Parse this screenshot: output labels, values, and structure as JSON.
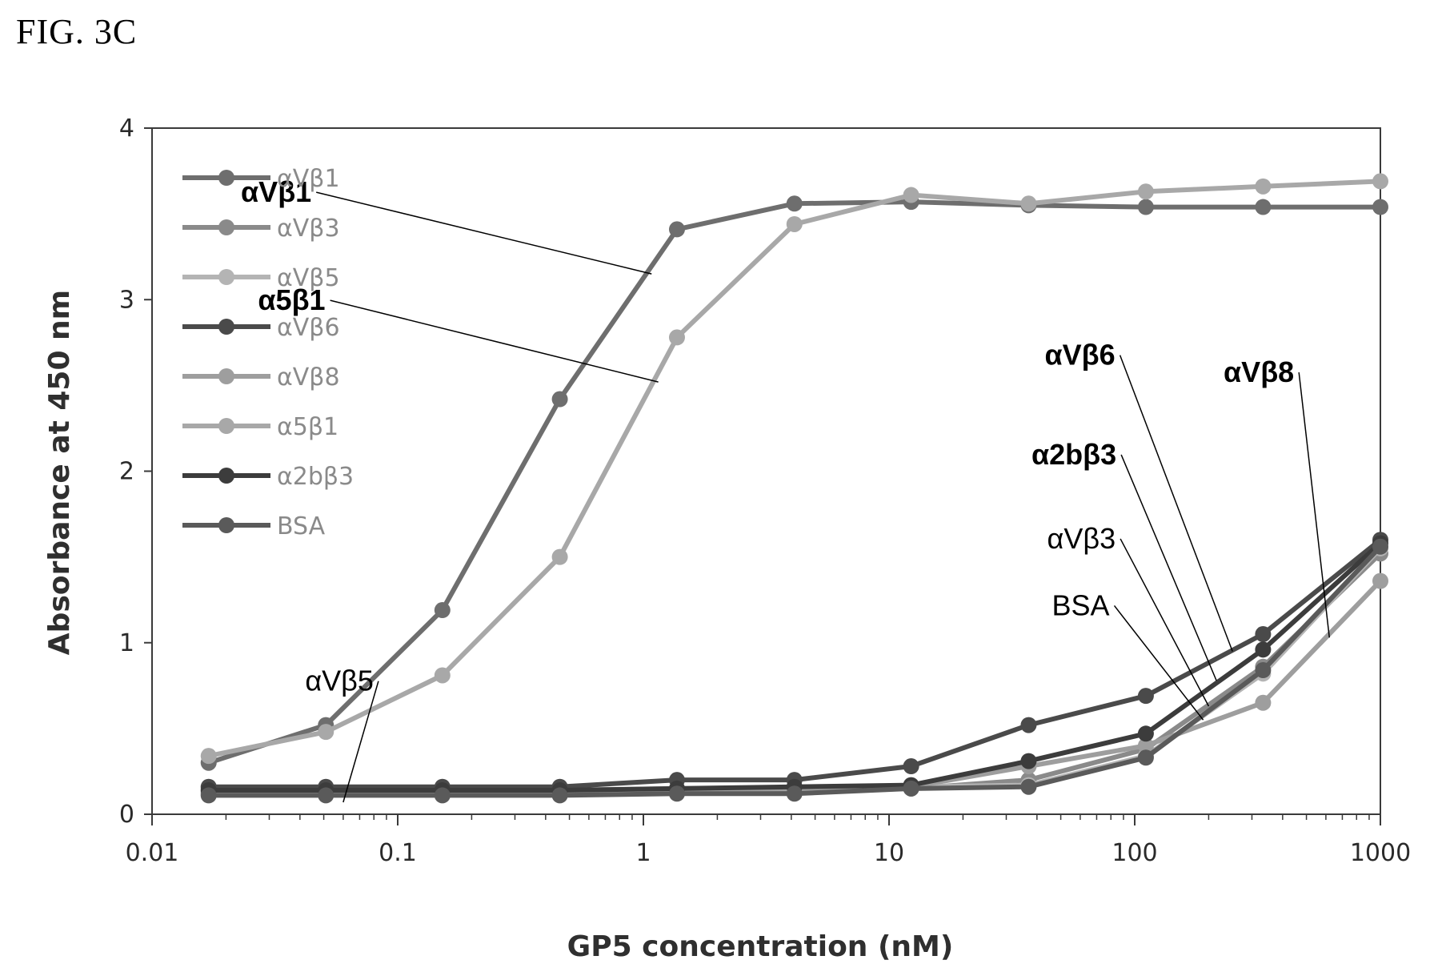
{
  "figure_label": "FIG. 3C",
  "chart_data": {
    "type": "line",
    "title": "",
    "xlabel": "GP5 concentration (nM)",
    "ylabel": "Absorbance at 450 nm",
    "xscale": "log",
    "xlim": [
      0.01,
      1000
    ],
    "ylim": [
      0,
      4
    ],
    "xticks": [
      0.01,
      0.1,
      1,
      10,
      100,
      1000
    ],
    "xtick_labels": [
      "0.01",
      "0.1",
      "1",
      "10",
      "100",
      "1000"
    ],
    "yticks": [
      0,
      1,
      2,
      3,
      4
    ],
    "ytick_labels": [
      "0",
      "1",
      "2",
      "3",
      "4"
    ],
    "grid": false,
    "legend_position": "top-left",
    "x": [
      0.017,
      0.051,
      0.152,
      0.457,
      1.37,
      4.12,
      12.3,
      37,
      111,
      333,
      1000
    ],
    "series": [
      {
        "name": "αVβ1",
        "color": "#6e6e6e",
        "values": [
          0.3,
          0.52,
          1.19,
          2.42,
          3.41,
          3.56,
          3.57,
          3.55,
          3.54,
          3.54,
          3.54
        ]
      },
      {
        "name": "αVβ3",
        "color": "#8a8a8a",
        "values": [
          0.12,
          0.12,
          0.12,
          0.12,
          0.13,
          0.13,
          0.15,
          0.2,
          0.38,
          0.86,
          1.52
        ]
      },
      {
        "name": "αVβ5",
        "color": "#b4b4b4",
        "values": [
          0.15,
          0.14,
          0.14,
          0.14,
          0.15,
          0.15,
          0.16,
          0.17,
          0.34,
          0.82,
          1.55
        ]
      },
      {
        "name": "αVβ6",
        "color": "#4a4a4a",
        "values": [
          0.16,
          0.16,
          0.16,
          0.16,
          0.2,
          0.2,
          0.28,
          0.52,
          0.69,
          1.05,
          1.6
        ]
      },
      {
        "name": "αVβ8",
        "color": "#9e9e9e",
        "values": [
          0.13,
          0.13,
          0.13,
          0.13,
          0.14,
          0.15,
          0.16,
          0.28,
          0.4,
          0.65,
          1.36
        ]
      },
      {
        "name": "α5β1",
        "color": "#a8a8a8",
        "values": [
          0.34,
          0.48,
          0.81,
          1.5,
          2.78,
          3.44,
          3.61,
          3.56,
          3.63,
          3.66,
          3.69
        ]
      },
      {
        "name": "α2bβ3",
        "color": "#3c3c3c",
        "values": [
          0.14,
          0.14,
          0.14,
          0.14,
          0.15,
          0.16,
          0.17,
          0.31,
          0.47,
          0.96,
          1.58
        ]
      },
      {
        "name": "BSA",
        "color": "#5a5a5a",
        "values": [
          0.11,
          0.11,
          0.11,
          0.11,
          0.12,
          0.12,
          0.15,
          0.16,
          0.33,
          0.84,
          1.56
        ]
      }
    ],
    "annotations": [
      {
        "label": "αVβ1",
        "bold": true,
        "text_x": 0.023,
        "text_y": 3.57,
        "target_x": 1.08,
        "target_y": 3.15
      },
      {
        "label": "α5β1",
        "bold": true,
        "text_x": 0.027,
        "text_y": 2.94,
        "target_x": 1.15,
        "target_y": 2.52
      },
      {
        "label": "αVβ5",
        "bold": false,
        "text_x": 0.042,
        "text_y": 0.72,
        "target_x": 0.06,
        "target_y": 0.07
      },
      {
        "label": "αVβ6",
        "bold": true,
        "text_x": 43,
        "text_y": 2.62,
        "target_x": 250,
        "target_y": 0.95
      },
      {
        "label": "α2bβ3",
        "bold": true,
        "text_x": 38,
        "text_y": 2.04,
        "target_x": 215,
        "target_y": 0.78
      },
      {
        "label": "αVβ3",
        "bold": false,
        "text_x": 44,
        "text_y": 1.55,
        "target_x": 200,
        "target_y": 0.63
      },
      {
        "label": "BSA",
        "bold": false,
        "text_x": 46,
        "text_y": 1.16,
        "target_x": 190,
        "target_y": 0.55
      },
      {
        "label": "αVβ8",
        "bold": true,
        "text_x": 230,
        "text_y": 2.52,
        "target_x": 620,
        "target_y": 1.03
      }
    ]
  }
}
